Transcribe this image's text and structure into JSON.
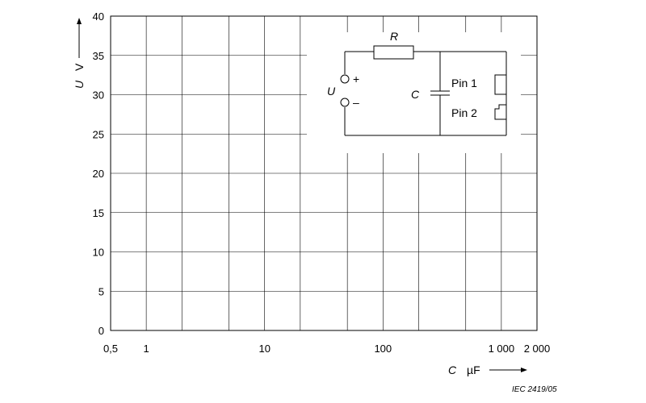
{
  "chart_data": {
    "type": "line",
    "x": {
      "symbol": "C",
      "unit": "µF",
      "scale": "log",
      "range": [
        0.5,
        2000
      ],
      "ticks": [
        {
          "value": 0.5,
          "label": "0,5"
        },
        {
          "value": 1,
          "label": "1"
        },
        {
          "value": 10,
          "label": "10"
        },
        {
          "value": 100,
          "label": "100"
        },
        {
          "value": 1000,
          "label": "1 000"
        },
        {
          "value": 2000,
          "label": "2 000"
        }
      ]
    },
    "y": {
      "symbol": "U",
      "unit": "V",
      "scale": "linear",
      "range": [
        0,
        40
      ],
      "ticks": [
        0,
        5,
        10,
        15,
        20,
        25,
        30,
        35,
        40
      ]
    },
    "grid": true,
    "series": []
  },
  "inset": {
    "resistor_label": "R",
    "capacitor_label": "C",
    "source_label": "U",
    "plus_sign": "+",
    "minus_sign": "–",
    "pin1_label": "Pin 1",
    "pin2_label": "Pin 2"
  },
  "reference": "IEC   2419/05"
}
